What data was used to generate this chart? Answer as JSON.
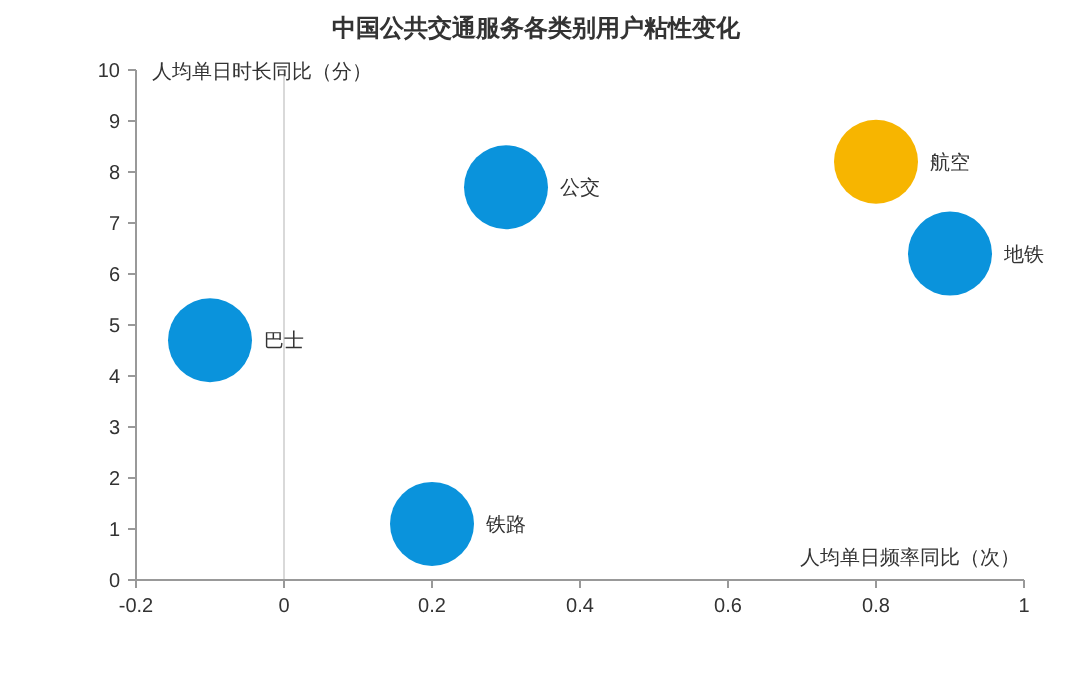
{
  "chart_data": {
    "type": "bubble",
    "title": "中国公共交通服务各类别用户粘性变化",
    "xlabel": "人均单日频率同比（次）",
    "ylabel": "人均单日时长同比（分）",
    "xlim": [
      -0.2,
      1
    ],
    "xticks": [
      -0.2,
      0,
      0.2,
      0.4,
      0.6,
      0.8,
      1
    ],
    "ylim": [
      0,
      10
    ],
    "yticks": [
      0,
      1,
      2,
      3,
      4,
      5,
      6,
      7,
      8,
      9,
      10
    ],
    "ref_lines": [
      {
        "axis": "x",
        "value": 0,
        "color": "#d9d9d9"
      }
    ],
    "grid": false,
    "series": [
      {
        "name": "巴士",
        "color": "#0a93dc",
        "x": [
          -0.1
        ],
        "values": [
          4.7
        ],
        "sizes": [
          1
        ]
      },
      {
        "name": "公交",
        "color": "#0a93dc",
        "x": [
          0.3
        ],
        "values": [
          7.7
        ],
        "sizes": [
          1
        ]
      },
      {
        "name": "铁路",
        "color": "#0a93dc",
        "x": [
          0.2
        ],
        "values": [
          1.1
        ],
        "sizes": [
          1
        ]
      },
      {
        "name": "航空",
        "color": "#f7b500",
        "x": [
          0.8
        ],
        "values": [
          8.2
        ],
        "sizes": [
          1
        ]
      },
      {
        "name": "地铁",
        "color": "#0a93dc",
        "x": [
          0.9
        ],
        "values": [
          6.4
        ],
        "sizes": [
          1
        ]
      }
    ]
  }
}
